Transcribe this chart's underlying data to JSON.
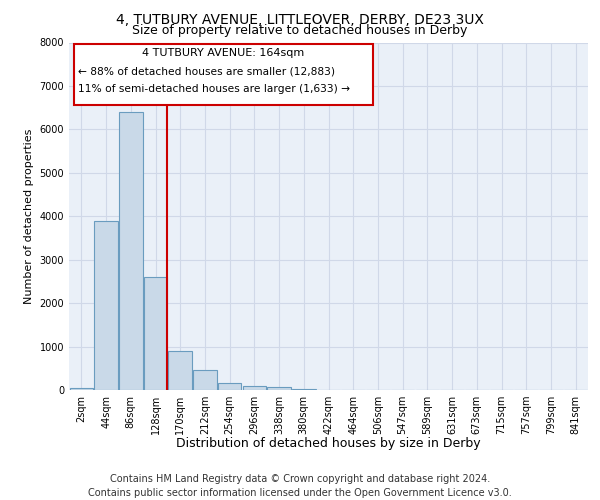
{
  "title_line1": "4, TUTBURY AVENUE, LITTLEOVER, DERBY, DE23 3UX",
  "title_line2": "Size of property relative to detached houses in Derby",
  "xlabel": "Distribution of detached houses by size in Derby",
  "ylabel": "Number of detached properties",
  "bin_labels": [
    "2sqm",
    "44sqm",
    "86sqm",
    "128sqm",
    "170sqm",
    "212sqm",
    "254sqm",
    "296sqm",
    "338sqm",
    "380sqm",
    "422sqm",
    "464sqm",
    "506sqm",
    "547sqm",
    "589sqm",
    "631sqm",
    "673sqm",
    "715sqm",
    "757sqm",
    "799sqm",
    "841sqm"
  ],
  "bar_values": [
    50,
    3900,
    6400,
    2600,
    900,
    450,
    150,
    100,
    80,
    30,
    0,
    0,
    0,
    0,
    0,
    0,
    0,
    0,
    0,
    0,
    0
  ],
  "bar_color": "#c9d9e8",
  "bar_edge_color": "#6a9cbf",
  "vline_color": "#cc0000",
  "vline_x": 3.475,
  "annotation_text1": "4 TUTBURY AVENUE: 164sqm",
  "annotation_text2": "← 88% of detached houses are smaller (12,883)",
  "annotation_text3": "11% of semi-detached houses are larger (1,633) →",
  "ylim": [
    0,
    8000
  ],
  "yticks": [
    0,
    1000,
    2000,
    3000,
    4000,
    5000,
    6000,
    7000,
    8000
  ],
  "grid_color": "#d0d8e8",
  "footer_text": "Contains HM Land Registry data © Crown copyright and database right 2024.\nContains public sector information licensed under the Open Government Licence v3.0.",
  "plot_bg_color": "#eaf0f8",
  "title1_fontsize": 10,
  "title2_fontsize": 9,
  "xlabel_fontsize": 9,
  "ylabel_fontsize": 8,
  "tick_fontsize": 7,
  "annotation_fontsize": 8,
  "footer_fontsize": 7
}
